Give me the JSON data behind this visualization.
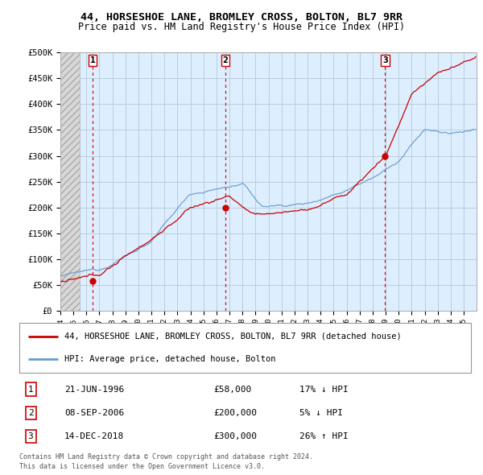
{
  "title_line1": "44, HORSESHOE LANE, BROMLEY CROSS, BOLTON, BL7 9RR",
  "title_line2": "Price paid vs. HM Land Registry's House Price Index (HPI)",
  "ylabel_ticks": [
    0,
    50000,
    100000,
    150000,
    200000,
    250000,
    300000,
    350000,
    400000,
    450000,
    500000
  ],
  "ylabel_labels": [
    "£0",
    "£50K",
    "£100K",
    "£150K",
    "£200K",
    "£250K",
    "£300K",
    "£350K",
    "£400K",
    "£450K",
    "£500K"
  ],
  "xmin": 1994.0,
  "xmax": 2026.0,
  "ymin": 0,
  "ymax": 500000,
  "hatch_end": 1995.5,
  "sale_points": [
    {
      "num": 1,
      "year": 1996.47,
      "price": 58000
    },
    {
      "num": 2,
      "year": 2006.69,
      "price": 200000
    },
    {
      "num": 3,
      "year": 2018.96,
      "price": 300000
    }
  ],
  "legend_line1": "44, HORSESHOE LANE, BROMLEY CROSS, BOLTON, BL7 9RR (detached house)",
  "legend_line2": "HPI: Average price, detached house, Bolton",
  "footer_line1": "Contains HM Land Registry data © Crown copyright and database right 2024.",
  "footer_line2": "This data is licensed under the Open Government Licence v3.0.",
  "red_color": "#cc0000",
  "blue_color": "#6699cc",
  "grid_color": "#bbccdd",
  "bg_color": "#ddeeff",
  "table_rows": [
    {
      "num": "1",
      "date": "21-JUN-1996",
      "price": "£58,000",
      "hpi": "17% ↓ HPI"
    },
    {
      "num": "2",
      "date": "08-SEP-2006",
      "price": "£200,000",
      "hpi": "5% ↓ HPI"
    },
    {
      "num": "3",
      "date": "14-DEC-2018",
      "price": "£300,000",
      "hpi": "26% ↑ HPI"
    }
  ]
}
